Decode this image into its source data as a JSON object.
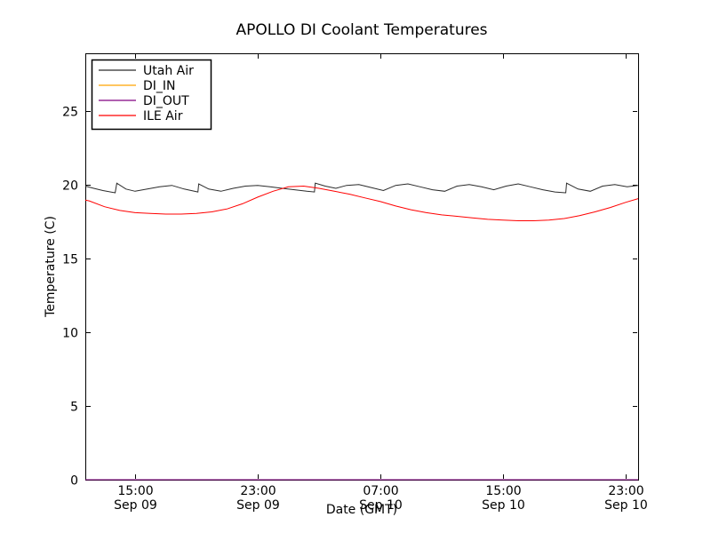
{
  "figure": {
    "title": "APOLLO DI Coolant Temperatures",
    "xlabel": "Date (GMT)",
    "ylabel": "Temperature (C)"
  },
  "chart_data": {
    "type": "line",
    "title": "APOLLO DI Coolant Temperatures",
    "xlabel": "Date (GMT)",
    "ylabel": "Temperature (C)",
    "background": "#ffffff",
    "grid": false,
    "frame_color": "#000000",
    "x_unit": "hours since Sep 09 12:00 GMT",
    "xlim": [
      -0.25,
      35.82
    ],
    "ylim": [
      0,
      28.9
    ],
    "y_ticks": [
      0,
      5,
      10,
      15,
      20,
      25
    ],
    "x_ticks": [
      {
        "t": 3,
        "time": "15:00",
        "date": "Sep 09"
      },
      {
        "t": 11,
        "time": "23:00",
        "date": "Sep 09"
      },
      {
        "t": 19,
        "time": "07:00",
        "date": "Sep 10"
      },
      {
        "t": 27,
        "time": "15:00",
        "date": "Sep 10"
      },
      {
        "t": 35,
        "time": "23:00",
        "date": "Sep 10"
      }
    ],
    "legend": {
      "position": "upper-left",
      "entries": [
        "Utah Air",
        "DI_IN",
        "DI_OUT",
        "ILE Air"
      ]
    },
    "series": [
      {
        "name": "Utah Air",
        "color": "#2b2b2b",
        "x": [
          -0.25,
          0.3,
          0.9,
          1.7,
          1.8,
          2.4,
          3.0,
          3.8,
          4.6,
          5.4,
          6.2,
          7.1,
          7.15,
          7.8,
          8.6,
          9.4,
          10.2,
          11.0,
          11.8,
          12.6,
          13.4,
          14.2,
          14.7,
          14.75,
          15.4,
          16.1,
          16.8,
          17.6,
          18.4,
          19.2,
          20.0,
          20.8,
          21.6,
          22.4,
          23.2,
          24.0,
          24.8,
          25.6,
          26.4,
          27.2,
          28.0,
          28.8,
          29.6,
          30.4,
          31.1,
          31.15,
          31.9,
          32.7,
          33.5,
          34.3,
          35.1,
          35.82
        ],
        "y": [
          19.9,
          19.75,
          19.6,
          19.45,
          20.1,
          19.7,
          19.55,
          19.7,
          19.85,
          19.95,
          19.7,
          19.5,
          20.05,
          19.7,
          19.55,
          19.75,
          19.9,
          19.95,
          19.85,
          19.75,
          19.65,
          19.55,
          19.5,
          20.1,
          19.9,
          19.75,
          19.95,
          20.0,
          19.8,
          19.6,
          19.95,
          20.05,
          19.85,
          19.65,
          19.55,
          19.9,
          20.0,
          19.85,
          19.65,
          19.9,
          20.05,
          19.85,
          19.65,
          19.5,
          19.45,
          20.1,
          19.7,
          19.55,
          19.9,
          20.0,
          19.85,
          19.95
        ]
      },
      {
        "name": "DI_IN",
        "color": "#ffa500",
        "x": [
          -0.25,
          35.82
        ],
        "y": [
          0,
          0
        ]
      },
      {
        "name": "DI_OUT",
        "color": "#800080",
        "x": [
          -0.25,
          35.82
        ],
        "y": [
          0,
          0
        ]
      },
      {
        "name": "ILE Air",
        "color": "#ff0000",
        "x": [
          -0.25,
          0,
          1,
          2,
          3,
          4,
          5,
          6,
          7,
          8,
          9,
          10,
          11,
          12,
          13,
          14,
          15,
          16,
          17,
          18,
          19,
          20,
          21,
          22,
          23,
          24,
          25,
          26,
          27,
          28,
          29,
          30,
          31,
          32,
          33,
          34,
          35,
          35.82
        ],
        "y": [
          18.95,
          18.9,
          18.5,
          18.25,
          18.1,
          18.05,
          18.0,
          18.0,
          18.05,
          18.15,
          18.35,
          18.7,
          19.15,
          19.55,
          19.85,
          19.9,
          19.75,
          19.55,
          19.35,
          19.1,
          18.85,
          18.55,
          18.3,
          18.1,
          17.95,
          17.85,
          17.75,
          17.65,
          17.6,
          17.55,
          17.55,
          17.6,
          17.7,
          17.9,
          18.15,
          18.45,
          18.8,
          19.05
        ]
      }
    ]
  }
}
